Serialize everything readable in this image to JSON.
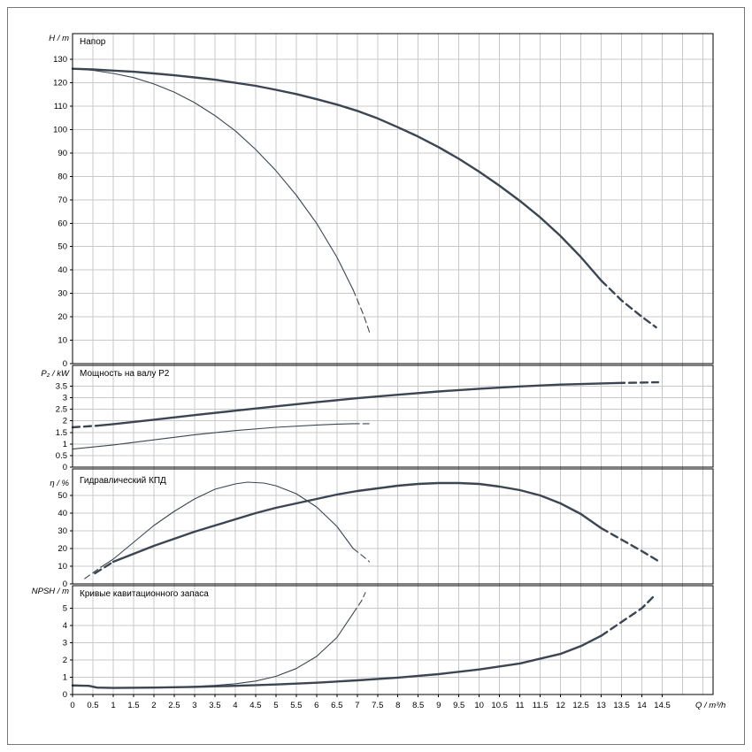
{
  "figure": {
    "xlabel": "Q / m³/h",
    "xlim": [
      0,
      15.75
    ],
    "x_tick_step": 0.5,
    "x_label_max": 14.5,
    "colors": {
      "curve": "#3b4652",
      "grid": "#c8c8c8",
      "frame": "#000000",
      "background": "#ffffff"
    }
  },
  "chart_data": [
    {
      "type": "line",
      "title": "Напор",
      "ylabel": "H / m",
      "ylim": [
        0,
        141
      ],
      "yticks": [
        0,
        10,
        20,
        30,
        40,
        50,
        60,
        70,
        80,
        90,
        100,
        110,
        120,
        130
      ],
      "legend": "none",
      "grid": true,
      "series": [
        {
          "name": "head-max-impeller",
          "stroke": "thick",
          "segments": [
            {
              "dashed": false,
              "points": [
                [
                  0,
                  126
                ],
                [
                  0.5,
                  125.7
                ],
                [
                  1,
                  125.2
                ],
                [
                  1.5,
                  124.7
                ],
                [
                  2,
                  124
                ],
                [
                  2.5,
                  123.2
                ],
                [
                  3,
                  122.3
                ],
                [
                  3.5,
                  121.3
                ],
                [
                  4,
                  120
                ],
                [
                  4.5,
                  118.7
                ],
                [
                  5,
                  117
                ],
                [
                  5.5,
                  115.2
                ],
                [
                  6,
                  113
                ],
                [
                  6.5,
                  110.7
                ],
                [
                  7,
                  108
                ],
                [
                  7.5,
                  104.8
                ],
                [
                  8,
                  101
                ],
                [
                  8.5,
                  97
                ],
                [
                  9,
                  92.5
                ],
                [
                  9.5,
                  87.5
                ],
                [
                  10,
                  82
                ],
                [
                  10.5,
                  76
                ],
                [
                  11,
                  69.5
                ],
                [
                  11.5,
                  62.5
                ],
                [
                  12,
                  54.5
                ],
                [
                  12.5,
                  45.5
                ],
                [
                  13,
                  35.5
                ]
              ]
            },
            {
              "dashed": true,
              "points": [
                [
                  13,
                  35.5
                ],
                [
                  13.5,
                  27
                ],
                [
                  14,
                  20
                ],
                [
                  14.35,
                  15.5
                ]
              ]
            }
          ]
        },
        {
          "name": "head-reduced",
          "stroke": "thin",
          "segments": [
            {
              "dashed": false,
              "points": [
                [
                  0,
                  126
                ],
                [
                  0.5,
                  125.3
                ],
                [
                  1,
                  124
                ],
                [
                  1.5,
                  122.2
                ],
                [
                  2,
                  119.5
                ],
                [
                  2.5,
                  116
                ],
                [
                  3,
                  111.5
                ],
                [
                  3.5,
                  106
                ],
                [
                  4,
                  99.5
                ],
                [
                  4.5,
                  91.5
                ],
                [
                  5,
                  82.5
                ],
                [
                  5.5,
                  72
                ],
                [
                  6,
                  60
                ],
                [
                  6.5,
                  45.5
                ],
                [
                  6.9,
                  31.5
                ]
              ]
            },
            {
              "dashed": true,
              "points": [
                [
                  6.9,
                  31.5
                ],
                [
                  7.15,
                  21
                ],
                [
                  7.3,
                  13.5
                ]
              ]
            }
          ]
        }
      ]
    },
    {
      "type": "line",
      "title": "Мощность на валу P2",
      "ylabel": "P₂ / kW",
      "ylim": [
        0,
        4.4
      ],
      "yticks": [
        0,
        0.5,
        1,
        1.5,
        2,
        2.5,
        3,
        3.5
      ],
      "legend": "none",
      "grid": true,
      "series": [
        {
          "name": "power-max-impeller",
          "stroke": "thick",
          "segments": [
            {
              "dashed": true,
              "points": [
                [
                  0,
                  1.72
                ],
                [
                  0.6,
                  1.79
                ]
              ]
            },
            {
              "dashed": false,
              "points": [
                [
                  0.6,
                  1.79
                ],
                [
                  1,
                  1.86
                ],
                [
                  2,
                  2.05
                ],
                [
                  3,
                  2.25
                ],
                [
                  4,
                  2.44
                ],
                [
                  5,
                  2.63
                ],
                [
                  6,
                  2.81
                ],
                [
                  7,
                  2.98
                ],
                [
                  8,
                  3.13
                ],
                [
                  9,
                  3.27
                ],
                [
                  10,
                  3.39
                ],
                [
                  11,
                  3.49
                ],
                [
                  12,
                  3.57
                ],
                [
                  13,
                  3.62
                ],
                [
                  13.4,
                  3.64
                ]
              ]
            },
            {
              "dashed": true,
              "points": [
                [
                  13.4,
                  3.64
                ],
                [
                  14.4,
                  3.67
                ]
              ]
            }
          ]
        },
        {
          "name": "power-reduced",
          "stroke": "thin",
          "segments": [
            {
              "dashed": false,
              "points": [
                [
                  0,
                  0.78
                ],
                [
                  1,
                  0.96
                ],
                [
                  2,
                  1.18
                ],
                [
                  3,
                  1.4
                ],
                [
                  4,
                  1.58
                ],
                [
                  5,
                  1.72
                ],
                [
                  6,
                  1.82
                ],
                [
                  6.5,
                  1.86
                ],
                [
                  6.9,
                  1.88
                ]
              ]
            },
            {
              "dashed": true,
              "points": [
                [
                  6.9,
                  1.88
                ],
                [
                  7.3,
                  1.88
                ]
              ]
            }
          ]
        }
      ]
    },
    {
      "type": "line",
      "title": "Гидравлический КПД",
      "ylabel": "η / %",
      "ylim": [
        0,
        65
      ],
      "yticks": [
        0,
        10,
        20,
        30,
        40,
        50
      ],
      "legend": "none",
      "grid": true,
      "series": [
        {
          "name": "efficiency-max-impeller",
          "stroke": "thick",
          "segments": [
            {
              "dashed": true,
              "points": [
                [
                  0.55,
                  6
                ],
                [
                  1,
                  12.5
                ]
              ]
            },
            {
              "dashed": false,
              "points": [
                [
                  1,
                  12.5
                ],
                [
                  1.5,
                  17
                ],
                [
                  2,
                  21.5
                ],
                [
                  2.5,
                  25.5
                ],
                [
                  3,
                  29.5
                ],
                [
                  3.5,
                  33
                ],
                [
                  4,
                  36.5
                ],
                [
                  4.5,
                  40
                ],
                [
                  5,
                  43
                ],
                [
                  5.5,
                  45.5
                ],
                [
                  6,
                  48
                ],
                [
                  6.5,
                  50.5
                ],
                [
                  7,
                  52.5
                ],
                [
                  7.5,
                  54
                ],
                [
                  8,
                  55.5
                ],
                [
                  8.5,
                  56.5
                ],
                [
                  9,
                  57
                ],
                [
                  9.5,
                  57
                ],
                [
                  10,
                  56.5
                ],
                [
                  10.5,
                  55
                ],
                [
                  11,
                  53
                ],
                [
                  11.5,
                  50
                ],
                [
                  12,
                  45.5
                ],
                [
                  12.5,
                  39.5
                ],
                [
                  13,
                  31.5
                ]
              ]
            },
            {
              "dashed": true,
              "points": [
                [
                  13,
                  31.5
                ],
                [
                  13.5,
                  25
                ],
                [
                  14,
                  18.5
                ],
                [
                  14.4,
                  13
                ]
              ]
            }
          ]
        },
        {
          "name": "efficiency-reduced",
          "stroke": "thin",
          "segments": [
            {
              "dashed": true,
              "points": [
                [
                  0.3,
                  3
                ],
                [
                  0.7,
                  9.5
                ]
              ]
            },
            {
              "dashed": false,
              "points": [
                [
                  0.7,
                  9.5
                ],
                [
                  1,
                  14
                ],
                [
                  1.5,
                  23.5
                ],
                [
                  2,
                  33
                ],
                [
                  2.5,
                  41
                ],
                [
                  3,
                  48
                ],
                [
                  3.5,
                  53.5
                ],
                [
                  4,
                  56.5
                ],
                [
                  4.3,
                  57.5
                ],
                [
                  4.7,
                  57
                ],
                [
                  5,
                  55.5
                ],
                [
                  5.5,
                  51
                ],
                [
                  6,
                  43.5
                ],
                [
                  6.5,
                  32.5
                ],
                [
                  6.9,
                  20
                ]
              ]
            },
            {
              "dashed": true,
              "points": [
                [
                  6.9,
                  20
                ],
                [
                  7.15,
                  15.5
                ],
                [
                  7.3,
                  12.5
                ]
              ]
            }
          ]
        }
      ]
    },
    {
      "type": "line",
      "title": "Кривые кавитационного запаса",
      "ylabel": "NPSH / m",
      "ylim": [
        0,
        6.3
      ],
      "yticks": [
        0,
        1,
        2,
        3,
        4,
        5
      ],
      "legend": "none",
      "grid": true,
      "series": [
        {
          "name": "npsh-max-impeller",
          "stroke": "thick",
          "segments": [
            {
              "dashed": false,
              "points": [
                [
                  0,
                  0.52
                ],
                [
                  0.4,
                  0.5
                ],
                [
                  0.6,
                  0.4
                ],
                [
                  1,
                  0.38
                ],
                [
                  2,
                  0.4
                ],
                [
                  3,
                  0.44
                ],
                [
                  4,
                  0.5
                ],
                [
                  5,
                  0.58
                ],
                [
                  6,
                  0.68
                ],
                [
                  7,
                  0.82
                ],
                [
                  8,
                  0.98
                ],
                [
                  9,
                  1.18
                ],
                [
                  10,
                  1.45
                ],
                [
                  11,
                  1.8
                ],
                [
                  12,
                  2.35
                ],
                [
                  12.5,
                  2.8
                ],
                [
                  13,
                  3.4
                ]
              ]
            },
            {
              "dashed": true,
              "points": [
                [
                  13,
                  3.4
                ],
                [
                  13.5,
                  4.2
                ],
                [
                  14,
                  5
                ],
                [
                  14.3,
                  5.7
                ]
              ]
            }
          ]
        },
        {
          "name": "npsh-reduced",
          "stroke": "thin",
          "segments": [
            {
              "dashed": false,
              "points": [
                [
                  0,
                  0.55
                ],
                [
                  0.4,
                  0.52
                ],
                [
                  0.6,
                  0.4
                ],
                [
                  1,
                  0.38
                ],
                [
                  2,
                  0.4
                ],
                [
                  2.5,
                  0.43
                ],
                [
                  3,
                  0.47
                ],
                [
                  3.5,
                  0.53
                ],
                [
                  4,
                  0.62
                ],
                [
                  4.5,
                  0.78
                ],
                [
                  5,
                  1.05
                ],
                [
                  5.5,
                  1.5
                ],
                [
                  6,
                  2.2
                ],
                [
                  6.5,
                  3.3
                ],
                [
                  6.9,
                  4.7
                ]
              ]
            },
            {
              "dashed": true,
              "points": [
                [
                  6.9,
                  4.7
                ],
                [
                  7.1,
                  5.4
                ],
                [
                  7.2,
                  5.9
                ]
              ]
            }
          ]
        }
      ]
    }
  ]
}
